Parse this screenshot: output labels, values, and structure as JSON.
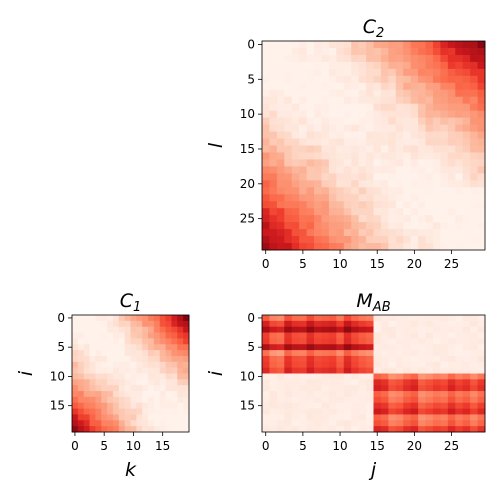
{
  "chart_data": [
    {
      "type": "heatmap",
      "title": "C",
      "title_sub": "2",
      "ylabel": "l",
      "xlabel": "",
      "colormap": "Reds",
      "rows": 30,
      "cols": 30,
      "xticks": [
        0,
        5,
        10,
        15,
        20,
        25
      ],
      "yticks": [
        0,
        5,
        10,
        15,
        20,
        25
      ],
      "xtick_labels": [
        "0",
        "5",
        "10",
        "15",
        "20",
        "25"
      ],
      "ytick_labels": [
        "0",
        "5",
        "10",
        "15",
        "20",
        "25"
      ],
      "pattern": "anti-diagonal: high at top-right and bottom-left corners, low along the anti-diagonal",
      "value_range": [
        0,
        1
      ]
    },
    {
      "type": "heatmap",
      "title": "C",
      "title_sub": "1",
      "ylabel": "i",
      "xlabel": "k",
      "colormap": "Reds",
      "rows": 20,
      "cols": 20,
      "xticks": [
        0,
        5,
        10,
        15
      ],
      "yticks": [
        0,
        5,
        10,
        15
      ],
      "xtick_labels": [
        "0",
        "5",
        "10",
        "15"
      ],
      "ytick_labels": [
        "0",
        "5",
        "10",
        "15"
      ],
      "pattern": "anti-diagonal: high at top-right and bottom-left corners, low along the anti-diagonal",
      "value_range": [
        0,
        1
      ]
    },
    {
      "type": "heatmap",
      "title": "M",
      "title_sub": "AB",
      "ylabel": "i",
      "xlabel": "j",
      "colormap": "Reds",
      "rows": 20,
      "cols": 30,
      "xticks": [
        0,
        5,
        10,
        15,
        20,
        25
      ],
      "yticks": [
        0,
        5,
        10,
        15
      ],
      "xtick_labels": [
        "0",
        "5",
        "10",
        "15",
        "20",
        "25"
      ],
      "ytick_labels": [
        "0",
        "5",
        "10",
        "15"
      ],
      "pattern": "block: rows 0-9 high for columns 0-14; rows 10-19 high for columns 15-29",
      "value_range": [
        0,
        1
      ]
    }
  ]
}
